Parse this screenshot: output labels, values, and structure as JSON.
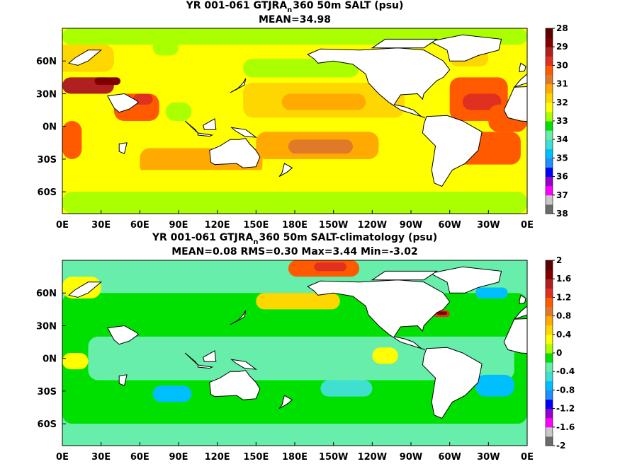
{
  "chart_data": [
    {
      "type": "heatmap",
      "title": "YR 001-061 GTJRA",
      "title_subscript": "n",
      "title_rest": "360 50m SALT (psu)",
      "subtitle": "MEAN=34.98",
      "xticks": [
        "0E",
        "30E",
        "60E",
        "90E",
        "120E",
        "150E",
        "180E",
        "150W",
        "120W",
        "90W",
        "60W",
        "30W",
        "0E"
      ],
      "yticks": [
        "60N",
        "30N",
        "0N",
        "30S",
        "60S"
      ],
      "ytick_lats": [
        60,
        30,
        0,
        -30,
        -60
      ],
      "xlim_lon": [
        0,
        360
      ],
      "ylim_lat": [
        -80,
        90
      ],
      "colorbar": {
        "ticks": [
          "28",
          "29",
          "30",
          "31",
          "32",
          "33",
          "34",
          "35",
          "36",
          "37",
          "38"
        ],
        "colors": [
          "#6b6b6b",
          "#c8c8c8",
          "#ff00ff",
          "#9900cc",
          "#0000ff",
          "#1e90ff",
          "#00bfff",
          "#40e0d0",
          "#66eeaa",
          "#00e000",
          "#aaff00",
          "#ffff00",
          "#ffd700",
          "#ffaa00",
          "#e07a28",
          "#ff5a00",
          "#e03020",
          "#b02020",
          "#800000",
          "#600000"
        ]
      },
      "background_class": 11,
      "regions": [
        {
          "lon": [
            0,
            360
          ],
          "lat": [
            -60,
            82
          ],
          "class": 11
        },
        {
          "lon": [
            140,
            265
          ],
          "lat": [
            8,
            40
          ],
          "class": 12
        },
        {
          "lon": [
            170,
            235
          ],
          "lat": [
            15,
            30
          ],
          "class": 13
        },
        {
          "lon": [
            150,
            245
          ],
          "lat": [
            -30,
            -5
          ],
          "class": 13
        },
        {
          "lon": [
            175,
            225
          ],
          "lat": [
            -25,
            -12
          ],
          "class": 14
        },
        {
          "lon": [
            300,
            345
          ],
          "lat": [
            5,
            45
          ],
          "class": 15
        },
        {
          "lon": [
            310,
            340
          ],
          "lat": [
            15,
            30
          ],
          "class": 16
        },
        {
          "lon": [
            295,
            355
          ],
          "lat": [
            -35,
            -5
          ],
          "class": 15
        },
        {
          "lon": [
            330,
            360
          ],
          "lat": [
            -5,
            20
          ],
          "class": 15
        },
        {
          "lon": [
            0,
            15
          ],
          "lat": [
            -30,
            5
          ],
          "class": 15
        },
        {
          "lon": [
            40,
            75
          ],
          "lat": [
            5,
            30
          ],
          "class": 15
        },
        {
          "lon": [
            55,
            70
          ],
          "lat": [
            20,
            30
          ],
          "class": 16
        },
        {
          "lon": [
            80,
            100
          ],
          "lat": [
            5,
            22
          ],
          "class": 10
        },
        {
          "lon": [
            0,
            40
          ],
          "lat": [
            30,
            45
          ],
          "class": 17
        },
        {
          "lon": [
            25,
            45
          ],
          "lat": [
            38,
            45
          ],
          "class": 18
        },
        {
          "lon": [
            60,
            155
          ],
          "lat": [
            -45,
            -20
          ],
          "class": 13
        },
        {
          "lon": [
            0,
            360
          ],
          "lat": [
            -60,
            -40
          ],
          "class": 11
        },
        {
          "lon": [
            0,
            360
          ],
          "lat": [
            -80,
            -60
          ],
          "class": 10
        },
        {
          "lon": [
            140,
            230
          ],
          "lat": [
            45,
            62
          ],
          "class": 10
        },
        {
          "lon": [
            0,
            360
          ],
          "lat": [
            75,
            90
          ],
          "class": 10
        },
        {
          "lon": [
            -5,
            40
          ],
          "lat": [
            50,
            75
          ],
          "class": 12
        },
        {
          "lon": [
            300,
            330
          ],
          "lat": [
            55,
            70
          ],
          "class": 12
        },
        {
          "lon": [
            70,
            90
          ],
          "lat": [
            65,
            80
          ],
          "class": 10
        }
      ]
    },
    {
      "type": "heatmap",
      "title": "YR 001-061 GTJRA",
      "title_subscript": "n",
      "title_rest": "360 50m SALT-climatology (psu)",
      "subtitle": "MEAN=0.08   RMS=0.30   Max=3.44   Min=-3.02",
      "xticks": [
        "0E",
        "30E",
        "60E",
        "90E",
        "120E",
        "150E",
        "180E",
        "150W",
        "120W",
        "90W",
        "60W",
        "30W",
        "0E"
      ],
      "yticks": [
        "60N",
        "30N",
        "0N",
        "30S",
        "60S"
      ],
      "ytick_lats": [
        60,
        30,
        0,
        -30,
        -60
      ],
      "xlim_lon": [
        0,
        360
      ],
      "ylim_lat": [
        -80,
        90
      ],
      "colorbar": {
        "ticks": [
          "2",
          "1.6",
          "1.2",
          "0.8",
          "0.4",
          "0",
          "-0.4",
          "-0.8",
          "-1.2",
          "-1.6",
          "-2"
        ],
        "colors": [
          "#6b6b6b",
          "#c8c8c8",
          "#ff00ff",
          "#9900cc",
          "#0000ff",
          "#1e90ff",
          "#00bfff",
          "#40e0d0",
          "#66eeaa",
          "#00e000",
          "#aaff00",
          "#ffff00",
          "#ffd700",
          "#ffaa00",
          "#e07a28",
          "#ff5a00",
          "#e03020",
          "#b02020",
          "#800000",
          "#600000"
        ]
      },
      "background_class": 8,
      "regions": [
        {
          "lon": [
            0,
            360
          ],
          "lat": [
            -60,
            60
          ],
          "class": 9
        },
        {
          "lon": [
            20,
            350
          ],
          "lat": [
            -20,
            20
          ],
          "class": 8
        },
        {
          "lon": [
            70,
            100
          ],
          "lat": [
            -40,
            -25
          ],
          "class": 6
        },
        {
          "lon": [
            200,
            240
          ],
          "lat": [
            -35,
            -20
          ],
          "class": 7
        },
        {
          "lon": [
            320,
            350
          ],
          "lat": [
            -35,
            -15
          ],
          "class": 6
        },
        {
          "lon": [
            0,
            360
          ],
          "lat": [
            -80,
            -60
          ],
          "class": 8
        },
        {
          "lon": [
            150,
            215
          ],
          "lat": [
            45,
            60
          ],
          "class": 12
        },
        {
          "lon": [
            175,
            230
          ],
          "lat": [
            75,
            90
          ],
          "class": 15
        },
        {
          "lon": [
            195,
            220
          ],
          "lat": [
            80,
            88
          ],
          "class": 16
        },
        {
          "lon": [
            287,
            300
          ],
          "lat": [
            38,
            44
          ],
          "class": 16
        },
        {
          "lon": [
            290,
            298
          ],
          "lat": [
            40,
            43
          ],
          "class": 18
        },
        {
          "lon": [
            320,
            345
          ],
          "lat": [
            55,
            65
          ],
          "class": 6
        },
        {
          "lon": [
            0,
            30
          ],
          "lat": [
            55,
            75
          ],
          "class": 11
        },
        {
          "lon": [
            0,
            20
          ],
          "lat": [
            -10,
            5
          ],
          "class": 11
        },
        {
          "lon": [
            240,
            260
          ],
          "lat": [
            -5,
            10
          ],
          "class": 11
        }
      ]
    }
  ]
}
